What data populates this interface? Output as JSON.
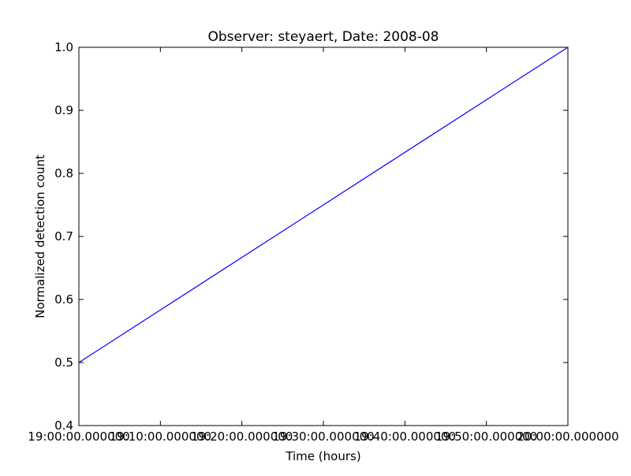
{
  "chart_data": {
    "type": "line",
    "title": "Observer: steyaert, Date: 2008-08",
    "xlabel": "Time (hours)",
    "ylabel": "Normalized detection count",
    "xlim": [
      "19:00:00.000000",
      "20:00:00.000000"
    ],
    "ylim": [
      0.4,
      1.0
    ],
    "x_ticks": [
      "19:00:00.000000",
      "19:10:00.000000",
      "19:20:00.000000",
      "19:30:00.000000",
      "19:40:00.000000",
      "19:50:00.000000",
      "20:00:00.000000"
    ],
    "y_ticks": [
      "0.4",
      "0.5",
      "0.6",
      "0.7",
      "0.8",
      "0.9",
      "1.0"
    ],
    "grid": false,
    "series": [
      {
        "color": "#0000ff",
        "x": [
          "19:00:00.000000",
          "20:00:00.000000"
        ],
        "y": [
          0.5,
          1.0
        ]
      }
    ]
  }
}
